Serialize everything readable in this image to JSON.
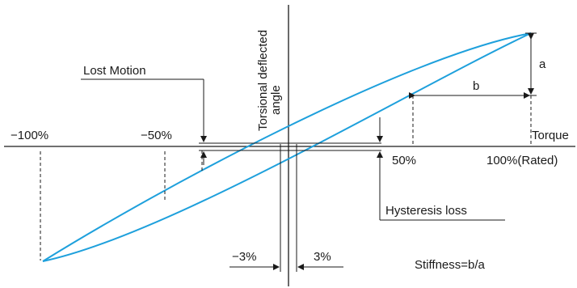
{
  "labels": {
    "y_axis_line1": "Torsional deflected",
    "y_axis_line2": "angle",
    "x_axis": "Torque",
    "lost_motion": "Lost Motion",
    "hysteresis_loss": "Hysteresis loss",
    "a": "a",
    "b": "b",
    "stiffness": "Stiffness=b/a",
    "minus_3pct": "−3%",
    "plus_3pct": "3%"
  },
  "ticks": {
    "neg_100": "−100%",
    "neg_50": "−50%",
    "pos_50": "50%",
    "pos_100": "100%(Rated)"
  },
  "colors": {
    "curve": "#1ea0dc",
    "ink": "#1a1a1a",
    "background": "#ffffff"
  }
}
